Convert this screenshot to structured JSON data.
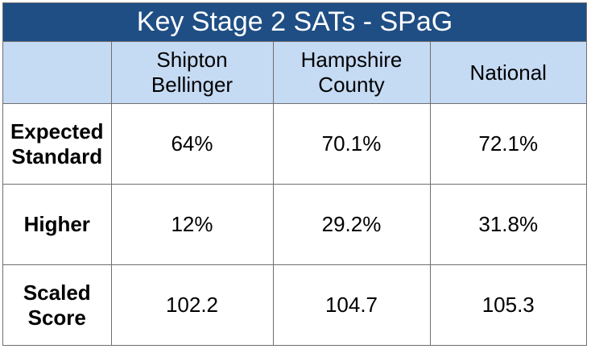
{
  "chart_data": {
    "type": "table",
    "title": "Key Stage 2 SATs - SPaG",
    "columns": [
      "Shipton Bellinger",
      "Hampshire County",
      "National"
    ],
    "rows": [
      {
        "label": "Expected Standard",
        "values": [
          "64%",
          "70.1%",
          "72.1%"
        ]
      },
      {
        "label": "Higher",
        "values": [
          "12%",
          "29.2%",
          "31.8%"
        ]
      },
      {
        "label": "Scaled Score",
        "values": [
          "102.2",
          "104.7",
          "105.3"
        ]
      }
    ]
  },
  "colors": {
    "title_background": "#1f4e85",
    "header_background": "#c5daf3",
    "title_text": "#ffffff"
  }
}
